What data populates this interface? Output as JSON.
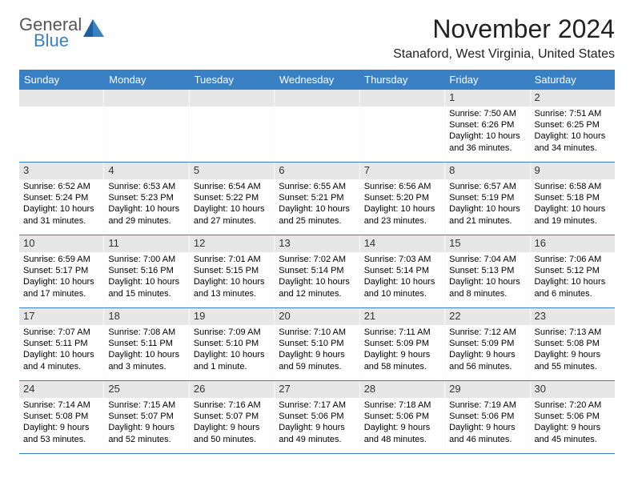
{
  "brand": {
    "part1": "General",
    "part2": "Blue",
    "accent": "#3a80c4",
    "gray": "#555555"
  },
  "title": "November 2024",
  "location": "Stanaford, West Virginia, United States",
  "dayHeaders": [
    "Sunday",
    "Monday",
    "Tuesday",
    "Wednesday",
    "Thursday",
    "Friday",
    "Saturday"
  ],
  "header_bg": "#3a80c4",
  "header_fg": "#ffffff",
  "daynum_bg": "#e7e7e7",
  "border_color": "#3a80c4",
  "weeks": [
    [
      null,
      null,
      null,
      null,
      null,
      {
        "n": "1",
        "sunrise": "7:50 AM",
        "sunset": "6:26 PM",
        "daylight": "10 hours and 36 minutes."
      },
      {
        "n": "2",
        "sunrise": "7:51 AM",
        "sunset": "6:25 PM",
        "daylight": "10 hours and 34 minutes."
      }
    ],
    [
      {
        "n": "3",
        "sunrise": "6:52 AM",
        "sunset": "5:24 PM",
        "daylight": "10 hours and 31 minutes."
      },
      {
        "n": "4",
        "sunrise": "6:53 AM",
        "sunset": "5:23 PM",
        "daylight": "10 hours and 29 minutes."
      },
      {
        "n": "5",
        "sunrise": "6:54 AM",
        "sunset": "5:22 PM",
        "daylight": "10 hours and 27 minutes."
      },
      {
        "n": "6",
        "sunrise": "6:55 AM",
        "sunset": "5:21 PM",
        "daylight": "10 hours and 25 minutes."
      },
      {
        "n": "7",
        "sunrise": "6:56 AM",
        "sunset": "5:20 PM",
        "daylight": "10 hours and 23 minutes."
      },
      {
        "n": "8",
        "sunrise": "6:57 AM",
        "sunset": "5:19 PM",
        "daylight": "10 hours and 21 minutes."
      },
      {
        "n": "9",
        "sunrise": "6:58 AM",
        "sunset": "5:18 PM",
        "daylight": "10 hours and 19 minutes."
      }
    ],
    [
      {
        "n": "10",
        "sunrise": "6:59 AM",
        "sunset": "5:17 PM",
        "daylight": "10 hours and 17 minutes."
      },
      {
        "n": "11",
        "sunrise": "7:00 AM",
        "sunset": "5:16 PM",
        "daylight": "10 hours and 15 minutes."
      },
      {
        "n": "12",
        "sunrise": "7:01 AM",
        "sunset": "5:15 PM",
        "daylight": "10 hours and 13 minutes."
      },
      {
        "n": "13",
        "sunrise": "7:02 AM",
        "sunset": "5:14 PM",
        "daylight": "10 hours and 12 minutes."
      },
      {
        "n": "14",
        "sunrise": "7:03 AM",
        "sunset": "5:14 PM",
        "daylight": "10 hours and 10 minutes."
      },
      {
        "n": "15",
        "sunrise": "7:04 AM",
        "sunset": "5:13 PM",
        "daylight": "10 hours and 8 minutes."
      },
      {
        "n": "16",
        "sunrise": "7:06 AM",
        "sunset": "5:12 PM",
        "daylight": "10 hours and 6 minutes."
      }
    ],
    [
      {
        "n": "17",
        "sunrise": "7:07 AM",
        "sunset": "5:11 PM",
        "daylight": "10 hours and 4 minutes."
      },
      {
        "n": "18",
        "sunrise": "7:08 AM",
        "sunset": "5:11 PM",
        "daylight": "10 hours and 3 minutes."
      },
      {
        "n": "19",
        "sunrise": "7:09 AM",
        "sunset": "5:10 PM",
        "daylight": "10 hours and 1 minute."
      },
      {
        "n": "20",
        "sunrise": "7:10 AM",
        "sunset": "5:10 PM",
        "daylight": "9 hours and 59 minutes."
      },
      {
        "n": "21",
        "sunrise": "7:11 AM",
        "sunset": "5:09 PM",
        "daylight": "9 hours and 58 minutes."
      },
      {
        "n": "22",
        "sunrise": "7:12 AM",
        "sunset": "5:09 PM",
        "daylight": "9 hours and 56 minutes."
      },
      {
        "n": "23",
        "sunrise": "7:13 AM",
        "sunset": "5:08 PM",
        "daylight": "9 hours and 55 minutes."
      }
    ],
    [
      {
        "n": "24",
        "sunrise": "7:14 AM",
        "sunset": "5:08 PM",
        "daylight": "9 hours and 53 minutes."
      },
      {
        "n": "25",
        "sunrise": "7:15 AM",
        "sunset": "5:07 PM",
        "daylight": "9 hours and 52 minutes."
      },
      {
        "n": "26",
        "sunrise": "7:16 AM",
        "sunset": "5:07 PM",
        "daylight": "9 hours and 50 minutes."
      },
      {
        "n": "27",
        "sunrise": "7:17 AM",
        "sunset": "5:06 PM",
        "daylight": "9 hours and 49 minutes."
      },
      {
        "n": "28",
        "sunrise": "7:18 AM",
        "sunset": "5:06 PM",
        "daylight": "9 hours and 48 minutes."
      },
      {
        "n": "29",
        "sunrise": "7:19 AM",
        "sunset": "5:06 PM",
        "daylight": "9 hours and 46 minutes."
      },
      {
        "n": "30",
        "sunrise": "7:20 AM",
        "sunset": "5:06 PM",
        "daylight": "9 hours and 45 minutes."
      }
    ]
  ]
}
